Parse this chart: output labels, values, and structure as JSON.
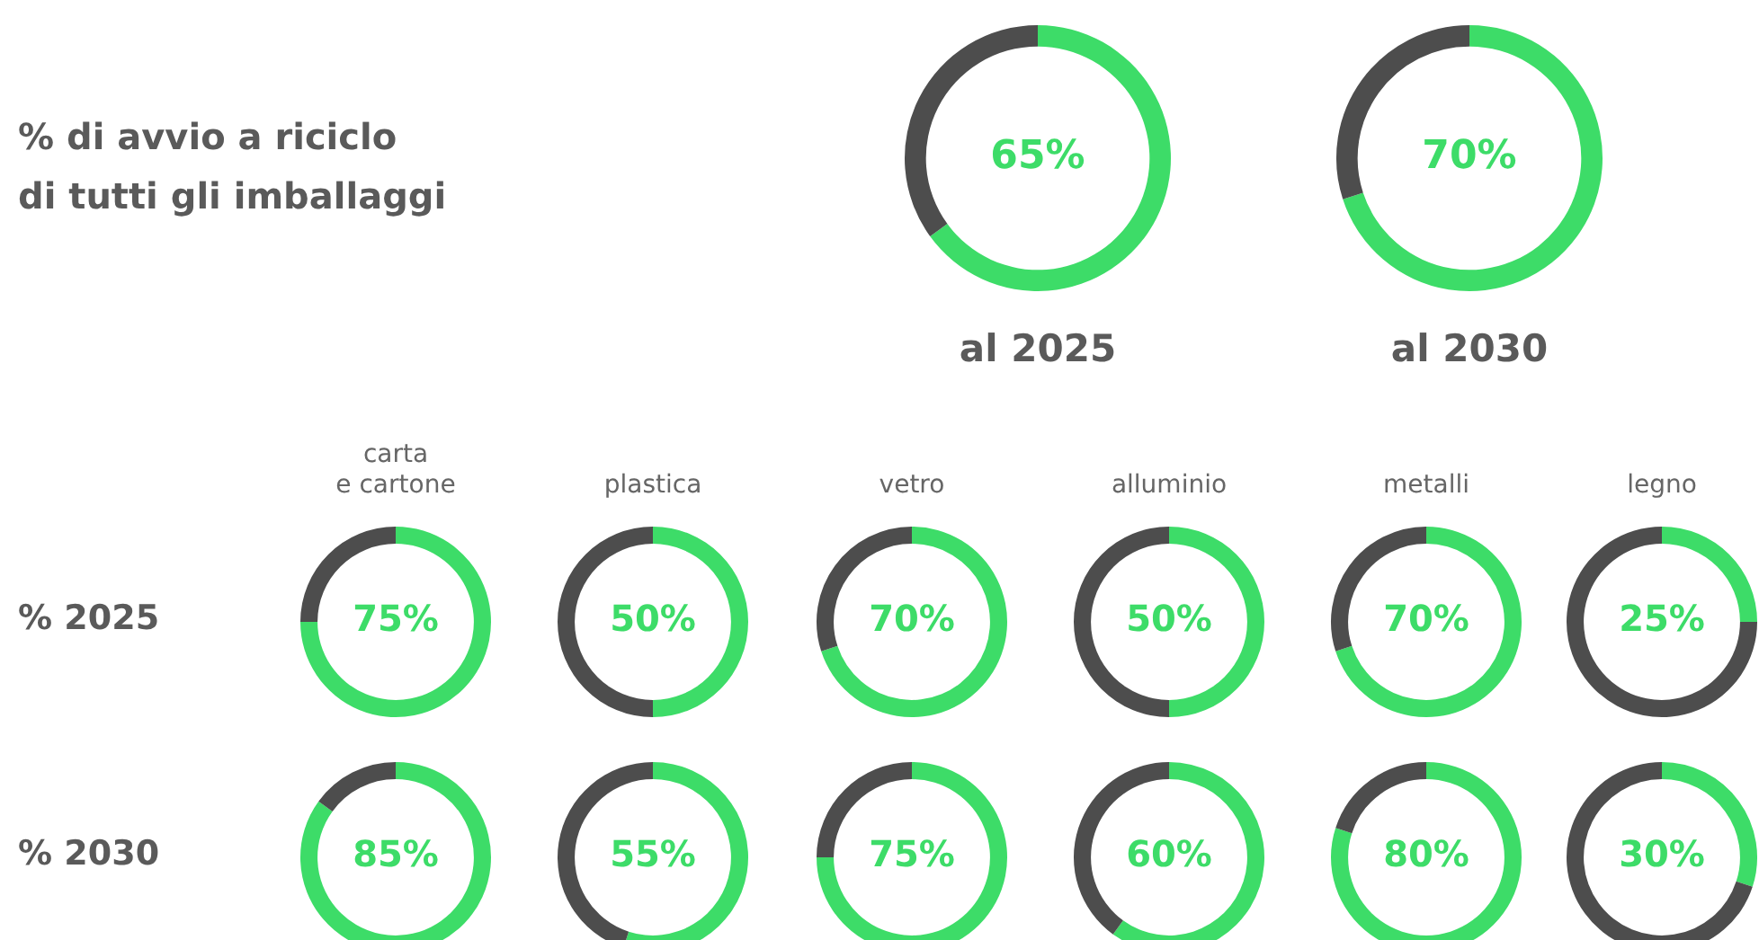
{
  "chart_data": [
    {
      "type": "other",
      "title": "% di avvio a riciclo\ndi tutti gli imballaggi"
    },
    {
      "type": "donut",
      "xlabel": "al 2025",
      "categories": [
        null,
        null
      ],
      "values": [
        65,
        35
      ],
      "colors": [
        "#3ddc68",
        "#4d4d4d"
      ],
      "value_labels": [
        "65%",
        null
      ]
    },
    {
      "type": "donut",
      "xlabel": "al 2030",
      "categories": [
        null,
        null
      ],
      "values": [
        70,
        30
      ],
      "colors": [
        "#3ddc68",
        "#4d4d4d"
      ],
      "value_labels": [
        "70%",
        null
      ]
    },
    {
      "type": "donut",
      "title": "carta\ne cartone",
      "ylabel": "% 2025",
      "categories": [
        null,
        null
      ],
      "values": [
        75,
        25
      ],
      "colors": [
        "#3ddc68",
        "#4d4d4d"
      ],
      "value_labels": [
        "75%",
        null
      ]
    },
    {
      "type": "donut",
      "title": "plastica",
      "categories": [
        null,
        null
      ],
      "values": [
        50,
        50
      ],
      "colors": [
        "#3ddc68",
        "#4d4d4d"
      ],
      "value_labels": [
        "50%",
        null
      ]
    },
    {
      "type": "donut",
      "title": "vetro",
      "categories": [
        null,
        null
      ],
      "values": [
        70,
        30
      ],
      "colors": [
        "#3ddc68",
        "#4d4d4d"
      ],
      "value_labels": [
        "70%",
        null
      ]
    },
    {
      "type": "donut",
      "title": "alluminio",
      "categories": [
        null,
        null
      ],
      "values": [
        50,
        50
      ],
      "colors": [
        "#3ddc68",
        "#4d4d4d"
      ],
      "value_labels": [
        "50%",
        null
      ]
    },
    {
      "type": "donut",
      "title": "metalli",
      "categories": [
        null,
        null
      ],
      "values": [
        70,
        30
      ],
      "colors": [
        "#3ddc68",
        "#4d4d4d"
      ],
      "value_labels": [
        "70%",
        null
      ]
    },
    {
      "type": "donut",
      "title": "legno",
      "categories": [
        null,
        null
      ],
      "values": [
        25,
        75
      ],
      "colors": [
        "#3ddc68",
        "#4d4d4d"
      ],
      "value_labels": [
        "25%",
        null
      ]
    },
    {
      "type": "donut",
      "ylabel": "% 2030",
      "categories": [
        null,
        null
      ],
      "values": [
        85,
        15
      ],
      "colors": [
        "#3ddc68",
        "#4d4d4d"
      ],
      "value_labels": [
        "85%",
        null
      ]
    },
    {
      "type": "donut",
      "categories": [
        null,
        null
      ],
      "values": [
        55,
        45
      ],
      "colors": [
        "#3ddc68",
        "#4d4d4d"
      ],
      "value_labels": [
        "55%",
        null
      ]
    },
    {
      "type": "donut",
      "categories": [
        null,
        null
      ],
      "values": [
        75,
        25
      ],
      "colors": [
        "#3ddc68",
        "#4d4d4d"
      ],
      "value_labels": [
        "75%",
        null
      ]
    },
    {
      "type": "donut",
      "categories": [
        null,
        null
      ],
      "values": [
        60,
        40
      ],
      "colors": [
        "#3ddc68",
        "#4d4d4d"
      ],
      "value_labels": [
        "60%",
        null
      ]
    },
    {
      "type": "donut",
      "categories": [
        null,
        null
      ],
      "values": [
        80,
        20
      ],
      "colors": [
        "#3ddc68",
        "#4d4d4d"
      ],
      "value_labels": [
        "80%",
        null
      ]
    },
    {
      "type": "donut",
      "categories": [
        null,
        null
      ],
      "values": [
        30,
        70
      ],
      "colors": [
        "#3ddc68",
        "#4d4d4d"
      ],
      "value_labels": [
        "30%",
        null
      ]
    }
  ]
}
